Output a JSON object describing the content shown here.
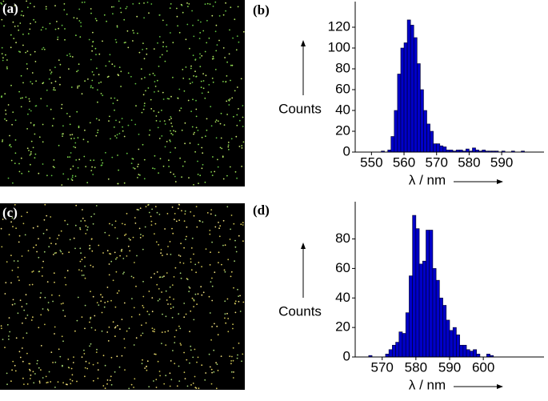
{
  "image_labels": [
    "(a)",
    "(c)"
  ],
  "chart_data": [
    {
      "type": "histogram",
      "panel_label": "(b)",
      "xlabel": "λ / nm",
      "ylabel": "Counts",
      "color": "#0000c8",
      "bins": [
        553,
        554,
        555,
        556,
        557,
        558,
        559,
        560,
        561,
        562,
        563,
        564,
        565,
        566,
        567,
        568,
        569,
        570,
        571,
        572,
        573,
        574,
        575,
        576,
        577,
        578,
        579,
        580,
        581,
        582,
        583,
        584,
        585,
        586,
        587,
        588,
        589,
        590,
        591,
        592,
        593,
        594,
        595,
        596,
        597,
        598
      ],
      "values": [
        1,
        0,
        2,
        15,
        40,
        75,
        100,
        105,
        127,
        122,
        110,
        85,
        60,
        40,
        27,
        20,
        8,
        8,
        6,
        5,
        2,
        2,
        1,
        2,
        2,
        1,
        3,
        1,
        4,
        2,
        1,
        2,
        1,
        1,
        1,
        1,
        0,
        1,
        0,
        0,
        1,
        0,
        0,
        1,
        0
      ],
      "xlim": [
        545,
        603
      ],
      "ylim": [
        0,
        140
      ],
      "xticks": [
        550,
        560,
        570,
        580,
        590
      ],
      "yticks": [
        0,
        20,
        40,
        60,
        80,
        100,
        120
      ]
    },
    {
      "type": "histogram",
      "panel_label": "(d)",
      "xlabel": "λ / nm",
      "ylabel": "Counts",
      "color": "#0000c8",
      "bins": [
        566,
        567,
        568,
        569,
        570,
        571,
        572,
        573,
        574,
        575,
        576,
        577,
        578,
        579,
        580,
        581,
        582,
        583,
        584,
        585,
        586,
        587,
        588,
        589,
        590,
        591,
        592,
        593,
        594,
        595,
        596,
        597,
        598,
        599,
        600,
        601,
        602,
        603
      ],
      "values": [
        1,
        0,
        0,
        0,
        0,
        2,
        5,
        8,
        10,
        17,
        16,
        30,
        55,
        96,
        87,
        63,
        65,
        86,
        86,
        60,
        52,
        40,
        35,
        25,
        18,
        20,
        15,
        8,
        8,
        5,
        4,
        5,
        2,
        0,
        0,
        2,
        1
      ],
      "xlim": [
        562,
        618
      ],
      "ylim": [
        0,
        102
      ],
      "xticks": [
        570,
        580,
        590,
        600
      ],
      "yticks": [
        0,
        20,
        40,
        60,
        80
      ]
    }
  ]
}
